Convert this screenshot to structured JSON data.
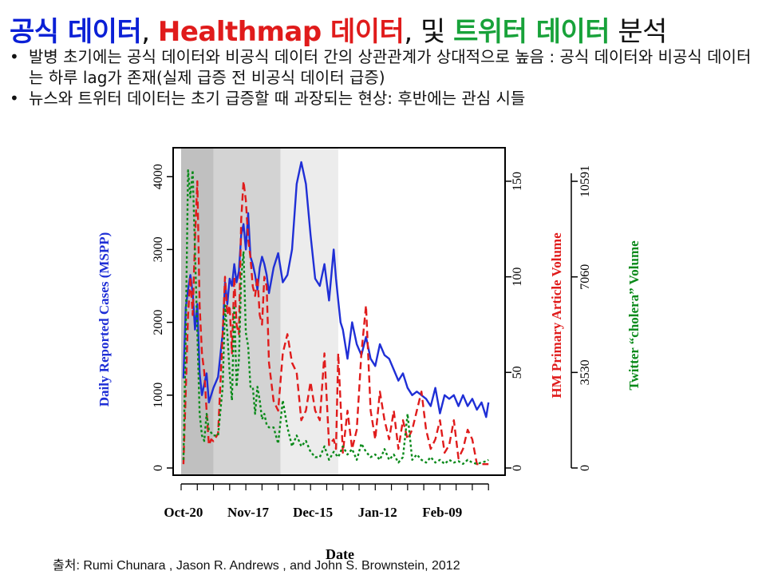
{
  "slide": {
    "title_parts": {
      "p1": "공식 데이터",
      "sep1": ", ",
      "p2": "Healthmap 데이터",
      "sep2": ", ",
      "p3": "및 ",
      "p4": "트위터 데이터",
      "p5": " 분석"
    },
    "bullets": [
      "발병 초기에는 공식 데이터와 비공식 데이터 간의 상관관계가 상대적으로 높음 : 공식 데이터와 비공식 데이터는 하루 lag가 존재(실제 급증 전 비공식 데이터 급증)",
      "뉴스와 트위터 데이터는 초기 급증할 때 과장되는 현상: 후반에는 관심 시들"
    ],
    "bullet_mark": "•",
    "caption": "출처: Rumi Chunara , Jason R. Andrews , and John S. Brownstein, 2012",
    "colors": {
      "blue": "#0b20d6",
      "red": "#e01b1b",
      "green": "#18a23a"
    }
  },
  "chart_data": {
    "type": "line",
    "xlabel": "Date",
    "x_tick_labels": [
      "Oct-20",
      "Nov-17",
      "Dec-15",
      "Jan-12",
      "Feb-09"
    ],
    "x_range_days": [
      0,
      135
    ],
    "shaded_periods": [
      {
        "start": 0,
        "end": 14,
        "shade": "#c0c0c0"
      },
      {
        "start": 14,
        "end": 43,
        "shade": "#d3d3d3"
      },
      {
        "start": 43,
        "end": 68,
        "shade": "#ececec"
      }
    ],
    "axes": {
      "left": {
        "label": "Daily Reported Cases (MSPP)",
        "ticks": [
          0,
          1000,
          2000,
          3000,
          4000
        ],
        "range": [
          0,
          4200
        ],
        "color": "#1f2fd6"
      },
      "right1": {
        "label": "HM Primary Article Volume",
        "ticks": [
          0,
          50,
          100,
          150
        ],
        "range": [
          0,
          160
        ],
        "color": "#e01b1b"
      },
      "right2": {
        "label": "Twitter “cholera” Volume",
        "ticks": [
          0,
          3530,
          7060,
          10591
        ],
        "range": [
          0,
          11300
        ],
        "color": "#0a8a1a"
      }
    },
    "series": [
      {
        "axis": "left",
        "color": "#1f2fd6",
        "dash": "",
        "x": [
          1,
          2,
          3,
          4,
          5,
          6,
          7,
          8,
          9,
          10,
          11,
          12,
          14,
          16,
          18,
          19,
          20,
          21,
          22,
          23,
          24,
          25,
          26,
          27,
          28,
          29,
          30,
          31,
          32,
          33,
          34,
          35,
          36,
          37,
          38,
          40,
          42,
          44,
          46,
          48,
          50,
          52,
          54,
          56,
          58,
          60,
          62,
          64,
          66,
          67,
          68,
          69,
          70,
          72,
          74,
          76,
          78,
          80,
          82,
          84,
          86,
          88,
          90,
          92,
          94,
          96,
          98,
          100,
          102,
          104,
          106,
          108,
          110,
          112,
          114,
          116,
          118,
          120,
          122,
          124,
          126,
          128,
          130,
          132,
          133
        ],
        "y": [
          1230,
          2200,
          2450,
          2650,
          2400,
          1900,
          2250,
          1300,
          1000,
          1150,
          1300,
          900,
          1100,
          1250,
          1850,
          2550,
          2250,
          2600,
          2500,
          2800,
          2550,
          2700,
          3200,
          3350,
          3000,
          3500,
          2900,
          2800,
          2650,
          2450,
          2750,
          2900,
          2800,
          2650,
          2400,
          2750,
          2950,
          2550,
          2650,
          3000,
          3900,
          4200,
          3900,
          3200,
          2600,
          2500,
          2800,
          2300,
          3000,
          2600,
          2300,
          2000,
          1900,
          1500,
          2000,
          1700,
          1550,
          1800,
          1500,
          1400,
          1700,
          1550,
          1500,
          1350,
          1200,
          1300,
          1100,
          1000,
          1050,
          1000,
          950,
          850,
          1100,
          750,
          1000,
          950,
          1000,
          850,
          1000,
          850,
          950,
          800,
          900,
          700,
          900
        ]
      },
      {
        "axis": "right1",
        "color": "#e01b1b",
        "dash": "9,5",
        "x": [
          1,
          2,
          3,
          4,
          5,
          6,
          7,
          8,
          9,
          10,
          11,
          12,
          13,
          14,
          16,
          18,
          19,
          20,
          21,
          22,
          23,
          24,
          25,
          26,
          27,
          28,
          29,
          30,
          31,
          32,
          33,
          34,
          35,
          36,
          37,
          38,
          40,
          42,
          44,
          46,
          48,
          50,
          52,
          54,
          56,
          58,
          60,
          62,
          64,
          66,
          67,
          68,
          70,
          72,
          74,
          76,
          78,
          80,
          82,
          84,
          86,
          88,
          90,
          92,
          94,
          96,
          98,
          100,
          102,
          104,
          106,
          108,
          110,
          112,
          114,
          116,
          118,
          120,
          122,
          124,
          126,
          128,
          130,
          132,
          133
        ],
        "y": [
          2,
          40,
          80,
          100,
          80,
          120,
          150,
          85,
          60,
          50,
          30,
          12,
          15,
          14,
          18,
          70,
          100,
          80,
          85,
          60,
          100,
          75,
          70,
          130,
          150,
          140,
          120,
          110,
          95,
          90,
          100,
          80,
          75,
          100,
          95,
          55,
          35,
          30,
          60,
          70,
          55,
          50,
          25,
          30,
          45,
          30,
          25,
          60,
          12,
          15,
          10,
          60,
          8,
          30,
          10,
          20,
          60,
          85,
          30,
          15,
          40,
          25,
          15,
          30,
          10,
          25,
          15,
          20,
          30,
          40,
          20,
          10,
          15,
          25,
          8,
          12,
          25,
          5,
          10,
          20,
          15,
          2,
          2,
          2,
          2
        ]
      },
      {
        "axis": "right2",
        "color": "#0a8a1a",
        "dash": "3,3",
        "x": [
          1,
          2,
          3,
          4,
          5,
          6,
          7,
          8,
          9,
          10,
          11,
          12,
          13,
          14,
          16,
          18,
          19,
          20,
          21,
          22,
          23,
          24,
          25,
          26,
          27,
          28,
          29,
          30,
          31,
          32,
          33,
          34,
          35,
          36,
          37,
          38,
          40,
          42,
          44,
          46,
          48,
          50,
          52,
          54,
          56,
          58,
          60,
          62,
          64,
          66,
          68,
          70,
          72,
          74,
          76,
          78,
          80,
          82,
          84,
          86,
          88,
          90,
          92,
          94,
          96,
          98,
          100,
          102,
          104,
          106,
          108,
          110,
          112,
          114,
          116,
          118,
          120,
          122,
          124,
          126,
          128,
          130,
          132,
          133
        ],
        "y": [
          300,
          5000,
          11000,
          10000,
          11000,
          8000,
          5000,
          2000,
          1200,
          1000,
          2000,
          1400,
          1300,
          1200,
          1200,
          3000,
          6000,
          5000,
          3500,
          2500,
          6000,
          3000,
          4000,
          7000,
          8000,
          5000,
          4500,
          3000,
          3000,
          2000,
          3000,
          2500,
          1800,
          2000,
          1600,
          1500,
          1500,
          900,
          2500,
          1500,
          800,
          1200,
          800,
          1000,
          600,
          400,
          400,
          800,
          300,
          600,
          400,
          800,
          500,
          700,
          300,
          900,
          600,
          400,
          500,
          300,
          700,
          300,
          500,
          200,
          400,
          2000,
          300,
          500,
          300,
          200,
          400,
          200,
          300,
          150,
          300,
          200,
          250,
          150,
          300,
          200,
          150,
          200,
          250,
          300
        ]
      }
    ]
  }
}
